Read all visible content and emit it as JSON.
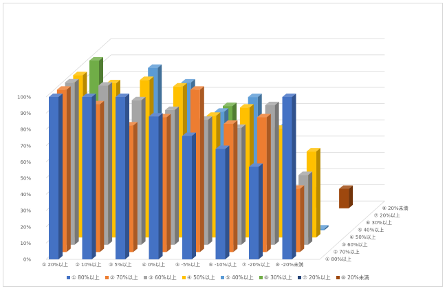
{
  "chart_data": {
    "type": "bar",
    "subtype": "3d-clustered-column",
    "categories": [
      "① 20%以上",
      "② 10%以上",
      "③ 5%以上",
      "④ 0%以上",
      "⑤ -5%以上",
      "⑥ -10%以上",
      "⑦ -20%以上",
      "⑧ -20%未満"
    ],
    "y_ticks": [
      "0%",
      "10%",
      "20%",
      "30%",
      "40%",
      "50%",
      "60%",
      "70%",
      "80%",
      "90%",
      "100%"
    ],
    "ylim": [
      0,
      100
    ],
    "legend_position": "bottom",
    "series": [
      {
        "name": "① 80%以上",
        "color": "#4472C4",
        "values": [
          100,
          100,
          100,
          88,
          76,
          68,
          57,
          100
        ]
      },
      {
        "name": "② 70%以上",
        "color": "#ED7D31",
        "values": [
          100,
          91,
          78,
          83,
          100,
          79,
          83,
          39
        ]
      },
      {
        "name": "③ 60%以上",
        "color": "#A5A5A5",
        "values": [
          100,
          98,
          89,
          83,
          77,
          72,
          86,
          43
        ]
      },
      {
        "name": "④ 50%以上",
        "color": "#FFC000",
        "values": [
          100,
          95,
          97,
          93,
          75,
          80,
          67,
          53
        ]
      },
      {
        "name": "⑤ 40%以上",
        "color": "#5B9BD5",
        "values": [
          null,
          null,
          100,
          91,
          73,
          82,
          65,
          1
        ]
      },
      {
        "name": "⑥ 30%以上",
        "color": "#70AD47",
        "values": [
          100,
          null,
          null,
          null,
          72,
          null,
          1,
          null
        ]
      },
      {
        "name": "⑦ 20%以上",
        "color": "#264478",
        "values": [
          null,
          null,
          null,
          null,
          null,
          null,
          null,
          null
        ]
      },
      {
        "name": "⑧ 20%未満",
        "color": "#9E480E",
        "values": [
          null,
          null,
          null,
          null,
          null,
          null,
          11,
          12
        ]
      }
    ]
  }
}
